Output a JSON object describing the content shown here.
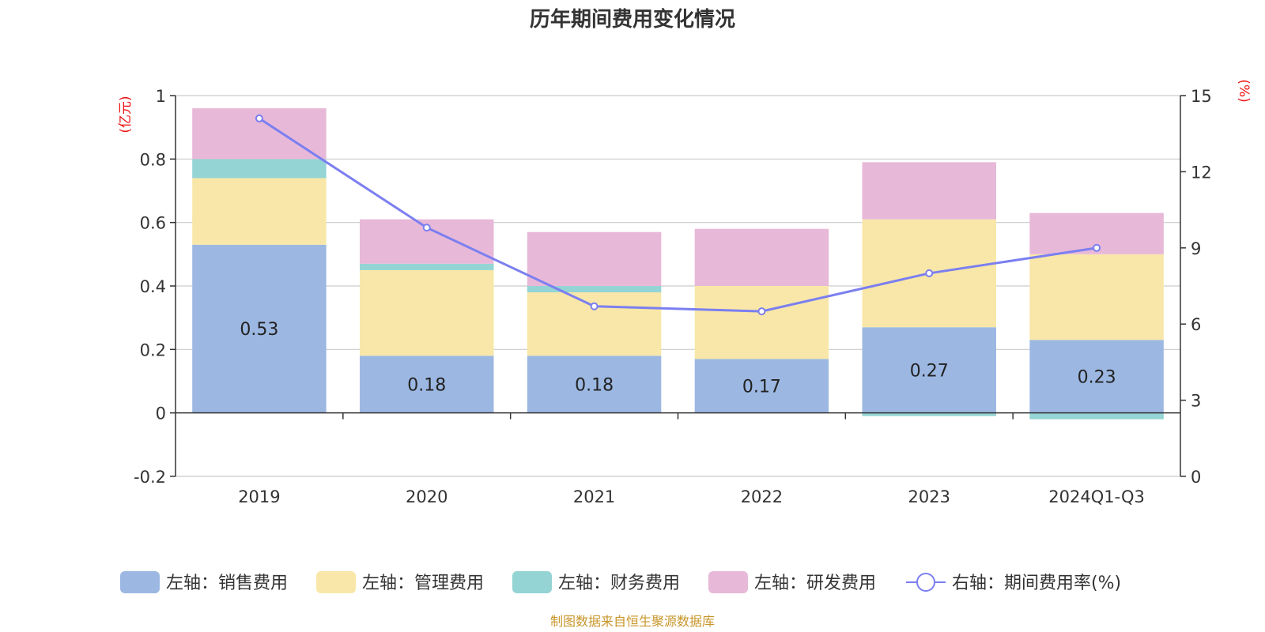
{
  "chart_data": {
    "type": "bar",
    "title": "历年期间费用变化情况",
    "categories": [
      "2019",
      "2020",
      "2021",
      "2022",
      "2023",
      "2024Q1-Q3"
    ],
    "left_unit": "(亿元)",
    "right_unit": "(%)",
    "left_axis": {
      "min": -0.2,
      "max": 1,
      "ticks": [
        -0.2,
        0,
        0.2,
        0.4,
        0.6,
        0.8,
        1
      ],
      "tick_labels": [
        "-0.2",
        "0",
        "0.2",
        "0.4",
        "0.6",
        "0.8",
        "1"
      ]
    },
    "right_axis": {
      "min": 0,
      "max": 15,
      "ticks": [
        0,
        3,
        6,
        9,
        12,
        15
      ],
      "tick_labels": [
        "0",
        "3",
        "6",
        "9",
        "12",
        "15"
      ]
    },
    "grid": true,
    "legend_position": "bottom",
    "series": [
      {
        "name": "左轴：销售费用",
        "type": "bar",
        "axis": "left",
        "color": "#9cb8e2",
        "values": [
          0.53,
          0.18,
          0.18,
          0.17,
          0.27,
          0.23
        ],
        "labels": [
          "0.53",
          "0.18",
          "0.18",
          "0.17",
          "0.27",
          "0.23"
        ]
      },
      {
        "name": "左轴：管理费用",
        "type": "bar",
        "axis": "left",
        "color": "#f8e7a8",
        "values": [
          0.21,
          0.27,
          0.2,
          0.23,
          0.34,
          0.27
        ]
      },
      {
        "name": "左轴：财务费用",
        "type": "bar",
        "axis": "left",
        "color": "#94d4d4",
        "values": [
          0.06,
          0.02,
          0.02,
          0.0,
          -0.01,
          -0.02
        ]
      },
      {
        "name": "左轴：研发费用",
        "type": "bar",
        "axis": "left",
        "color": "#e8b8d8",
        "values": [
          0.16,
          0.14,
          0.17,
          0.18,
          0.18,
          0.13
        ]
      },
      {
        "name": "右轴：期间费用率(%)",
        "type": "line",
        "axis": "right",
        "color": "#7b7ff0",
        "values": [
          14.1,
          9.8,
          6.7,
          6.5,
          8.0,
          9.0
        ]
      }
    ],
    "source": "制图数据来自恒生聚源数据库"
  }
}
